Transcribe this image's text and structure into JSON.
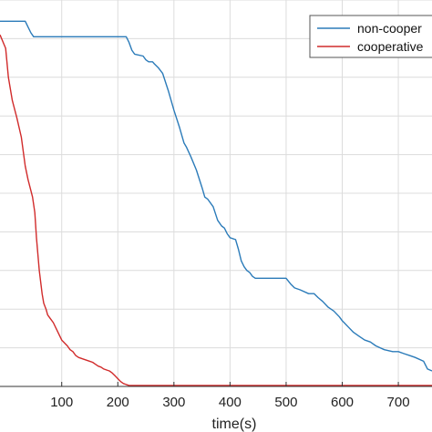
{
  "chart_data": {
    "type": "line",
    "xlabel": "time(s)",
    "ylabel": "",
    "xlim": [
      -10,
      760
    ],
    "ylim": [
      0,
      20
    ],
    "x_ticks": [
      100,
      200,
      300,
      400,
      500,
      600,
      700
    ],
    "x_tick_labels": [
      "100",
      "200",
      "300",
      "400",
      "500",
      "600",
      "700"
    ],
    "y_ticks": [
      2,
      4,
      6,
      8,
      10,
      12,
      14,
      16,
      18,
      20
    ],
    "grid": true,
    "legend_position": "top-right",
    "series": [
      {
        "name": "non-cooper",
        "color": "#2b7bb9",
        "x": [
          -10,
          35,
          40,
          45,
          50,
          215,
          220,
          225,
          230,
          245,
          250,
          255,
          262,
          265,
          272,
          280,
          290,
          300,
          310,
          318,
          322,
          330,
          340,
          350,
          355,
          360,
          370,
          378,
          385,
          390,
          395,
          400,
          410,
          415,
          420,
          425,
          430,
          435,
          440,
          445,
          500,
          508,
          515,
          525,
          540,
          550,
          557,
          565,
          575,
          585,
          595,
          600,
          610,
          620,
          630,
          640,
          650,
          660,
          675,
          690,
          700,
          710,
          720,
          730,
          745,
          752,
          760
        ],
        "y": [
          18.9,
          18.9,
          18.6,
          18.3,
          18.1,
          18.1,
          17.8,
          17.4,
          17.2,
          17.1,
          16.9,
          16.8,
          16.8,
          16.7,
          16.5,
          16.2,
          15.3,
          14.3,
          13.4,
          12.6,
          12.4,
          11.9,
          11.2,
          10.3,
          9.8,
          9.7,
          9.3,
          8.6,
          8.3,
          8.2,
          7.9,
          7.7,
          7.6,
          7.1,
          6.5,
          6.2,
          6.0,
          5.9,
          5.7,
          5.6,
          5.6,
          5.3,
          5.1,
          5.0,
          4.8,
          4.8,
          4.6,
          4.4,
          4.1,
          3.9,
          3.6,
          3.4,
          3.1,
          2.8,
          2.6,
          2.4,
          2.3,
          2.1,
          1.9,
          1.8,
          1.8,
          1.7,
          1.6,
          1.5,
          1.3,
          0.9,
          0.8
        ]
      },
      {
        "name": "cooperative",
        "color": "#d12b2b",
        "x": [
          -10,
          0,
          5,
          12,
          20,
          28,
          35,
          40,
          48,
          52,
          55,
          60,
          65,
          68,
          72,
          75,
          80,
          85,
          90,
          100,
          110,
          115,
          120,
          125,
          130,
          140,
          150,
          155,
          160,
          165,
          170,
          175,
          180,
          185,
          190,
          195,
          200,
          205,
          210,
          215,
          220,
          760
        ],
        "y": [
          18.2,
          17.5,
          16.0,
          14.8,
          13.9,
          12.9,
          11.4,
          10.7,
          9.8,
          9.0,
          7.7,
          6.0,
          4.8,
          4.3,
          4.0,
          3.7,
          3.5,
          3.3,
          3.0,
          2.4,
          2.1,
          1.9,
          1.8,
          1.6,
          1.5,
          1.4,
          1.3,
          1.25,
          1.15,
          1.05,
          1.0,
          0.9,
          0.85,
          0.8,
          0.7,
          0.55,
          0.4,
          0.25,
          0.15,
          0.1,
          0.05,
          0.05
        ]
      }
    ]
  }
}
